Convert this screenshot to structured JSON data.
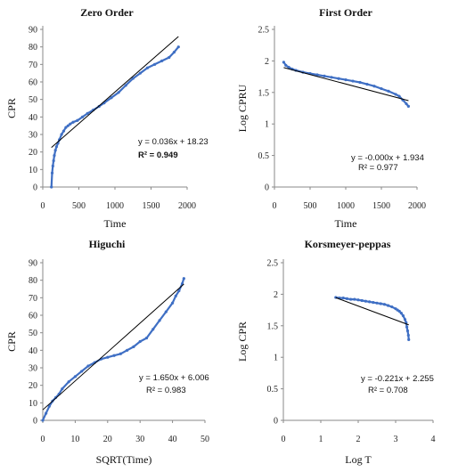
{
  "chart_data": [
    {
      "type": "scatter",
      "title": "Zero Order",
      "xlabel": "Time",
      "ylabel": "CPR",
      "xlim": [
        0,
        2000
      ],
      "xticks": [
        "0",
        "500",
        "1000",
        "1500",
        "2000"
      ],
      "ylim": [
        0,
        90
      ],
      "yticks": [
        "0",
        "10",
        "20",
        "30",
        "40",
        "50",
        "60",
        "70",
        "80",
        "90"
      ],
      "equation": "y = 0.036x + 18.23",
      "r2": "R² = 0.949",
      "trend": {
        "slope": 0.036,
        "intercept": 18.23,
        "x0": 120,
        "x1": 1880
      },
      "series": [
        {
          "color": "#3f6fc4",
          "x": [
            120,
            130,
            140,
            150,
            160,
            175,
            190,
            210,
            230,
            260,
            290,
            320,
            350,
            380,
            420,
            480,
            550,
            620,
            700,
            780,
            850,
            950,
            1050,
            1150,
            1250,
            1350,
            1450,
            1550,
            1650,
            1750,
            1820,
            1880
          ],
          "y": [
            0,
            8,
            12,
            15,
            18,
            21,
            23,
            25,
            27,
            30,
            32,
            34,
            35,
            36,
            37,
            38,
            40,
            42,
            44,
            46,
            48,
            51,
            54,
            58,
            62,
            65,
            68,
            70,
            72,
            74,
            77,
            80
          ]
        }
      ]
    },
    {
      "type": "scatter",
      "title": "First Order",
      "xlabel": "Time",
      "ylabel": "Log CPRU",
      "xlim": [
        0,
        2000
      ],
      "xticks": [
        "0",
        "500",
        "1000",
        "1500",
        "2000"
      ],
      "ylim": [
        0,
        2.5
      ],
      "yticks": [
        "0",
        "0.5",
        "1",
        "1.5",
        "2",
        "2.5"
      ],
      "equation": "y = -0.000x + 1.934",
      "r2": "R² = 0.977",
      "trend": {
        "slope": -0.0003,
        "intercept": 1.934,
        "x0": 130,
        "x1": 1880
      },
      "series": [
        {
          "color": "#3f6fc4",
          "x": [
            130,
            160,
            200,
            250,
            300,
            400,
            500,
            600,
            700,
            800,
            900,
            1000,
            1100,
            1200,
            1300,
            1400,
            1500,
            1600,
            1700,
            1750,
            1800,
            1850,
            1880
          ],
          "y": [
            1.98,
            1.93,
            1.9,
            1.87,
            1.85,
            1.82,
            1.8,
            1.78,
            1.76,
            1.74,
            1.72,
            1.7,
            1.68,
            1.66,
            1.63,
            1.6,
            1.56,
            1.52,
            1.47,
            1.44,
            1.38,
            1.32,
            1.28
          ]
        }
      ]
    },
    {
      "type": "scatter",
      "title": "Higuchi",
      "xlabel": "SQRT(Time)",
      "ylabel": "CPR",
      "xlim": [
        0,
        50
      ],
      "xticks": [
        "0",
        "10",
        "20",
        "30",
        "40",
        "50"
      ],
      "ylim": [
        0,
        90
      ],
      "yticks": [
        "0",
        "10",
        "20",
        "30",
        "40",
        "50",
        "60",
        "70",
        "80",
        "90"
      ],
      "equation": "y = 1.650x + 6.006",
      "r2": "R² = 0.983",
      "trend": {
        "slope": 1.65,
        "intercept": 6.006,
        "x0": 0,
        "x1": 43.5
      },
      "series": [
        {
          "color": "#3f6fc4",
          "x": [
            0,
            1,
            2,
            3,
            4,
            5,
            6,
            8,
            10,
            12,
            14,
            16,
            18,
            20,
            22,
            24,
            26,
            28,
            30,
            32,
            34,
            36,
            38,
            40,
            41,
            42,
            43,
            43.5
          ],
          "y": [
            0,
            4,
            8,
            11,
            13,
            15,
            18,
            22,
            25,
            28,
            31,
            33,
            35,
            36,
            37,
            38,
            40,
            42,
            45,
            47,
            52,
            57,
            62,
            67,
            71,
            74,
            78,
            81
          ]
        }
      ]
    },
    {
      "type": "scatter",
      "title": "Korsmeyer-peppas",
      "xlabel": "Log T",
      "ylabel": "Log CPR",
      "xlim": [
        0,
        4
      ],
      "xticks": [
        "0",
        "1",
        "2",
        "3",
        "4"
      ],
      "ylim": [
        0,
        2.5
      ],
      "yticks": [
        "0",
        "0.5",
        "1",
        "1.5",
        "2",
        "2.5"
      ],
      "equation": "y = -0.221x + 2.255",
      "r2": "R² = 0.708",
      "trend": {
        "slope": -0.221,
        "intercept": 2.255,
        "x0": 1.4,
        "x1": 3.35
      },
      "series": [
        {
          "color": "#3f6fc4",
          "x": [
            1.4,
            1.5,
            1.6,
            1.7,
            1.8,
            1.9,
            2.0,
            2.1,
            2.2,
            2.3,
            2.4,
            2.5,
            2.6,
            2.7,
            2.8,
            2.9,
            3.0,
            3.05,
            3.1,
            3.15,
            3.2,
            3.25,
            3.28,
            3.3,
            3.32,
            3.34,
            3.35
          ],
          "y": [
            1.95,
            1.94,
            1.94,
            1.93,
            1.92,
            1.92,
            1.91,
            1.9,
            1.89,
            1.88,
            1.87,
            1.86,
            1.85,
            1.84,
            1.82,
            1.8,
            1.77,
            1.75,
            1.73,
            1.7,
            1.66,
            1.6,
            1.55,
            1.48,
            1.42,
            1.35,
            1.28
          ]
        }
      ]
    }
  ]
}
